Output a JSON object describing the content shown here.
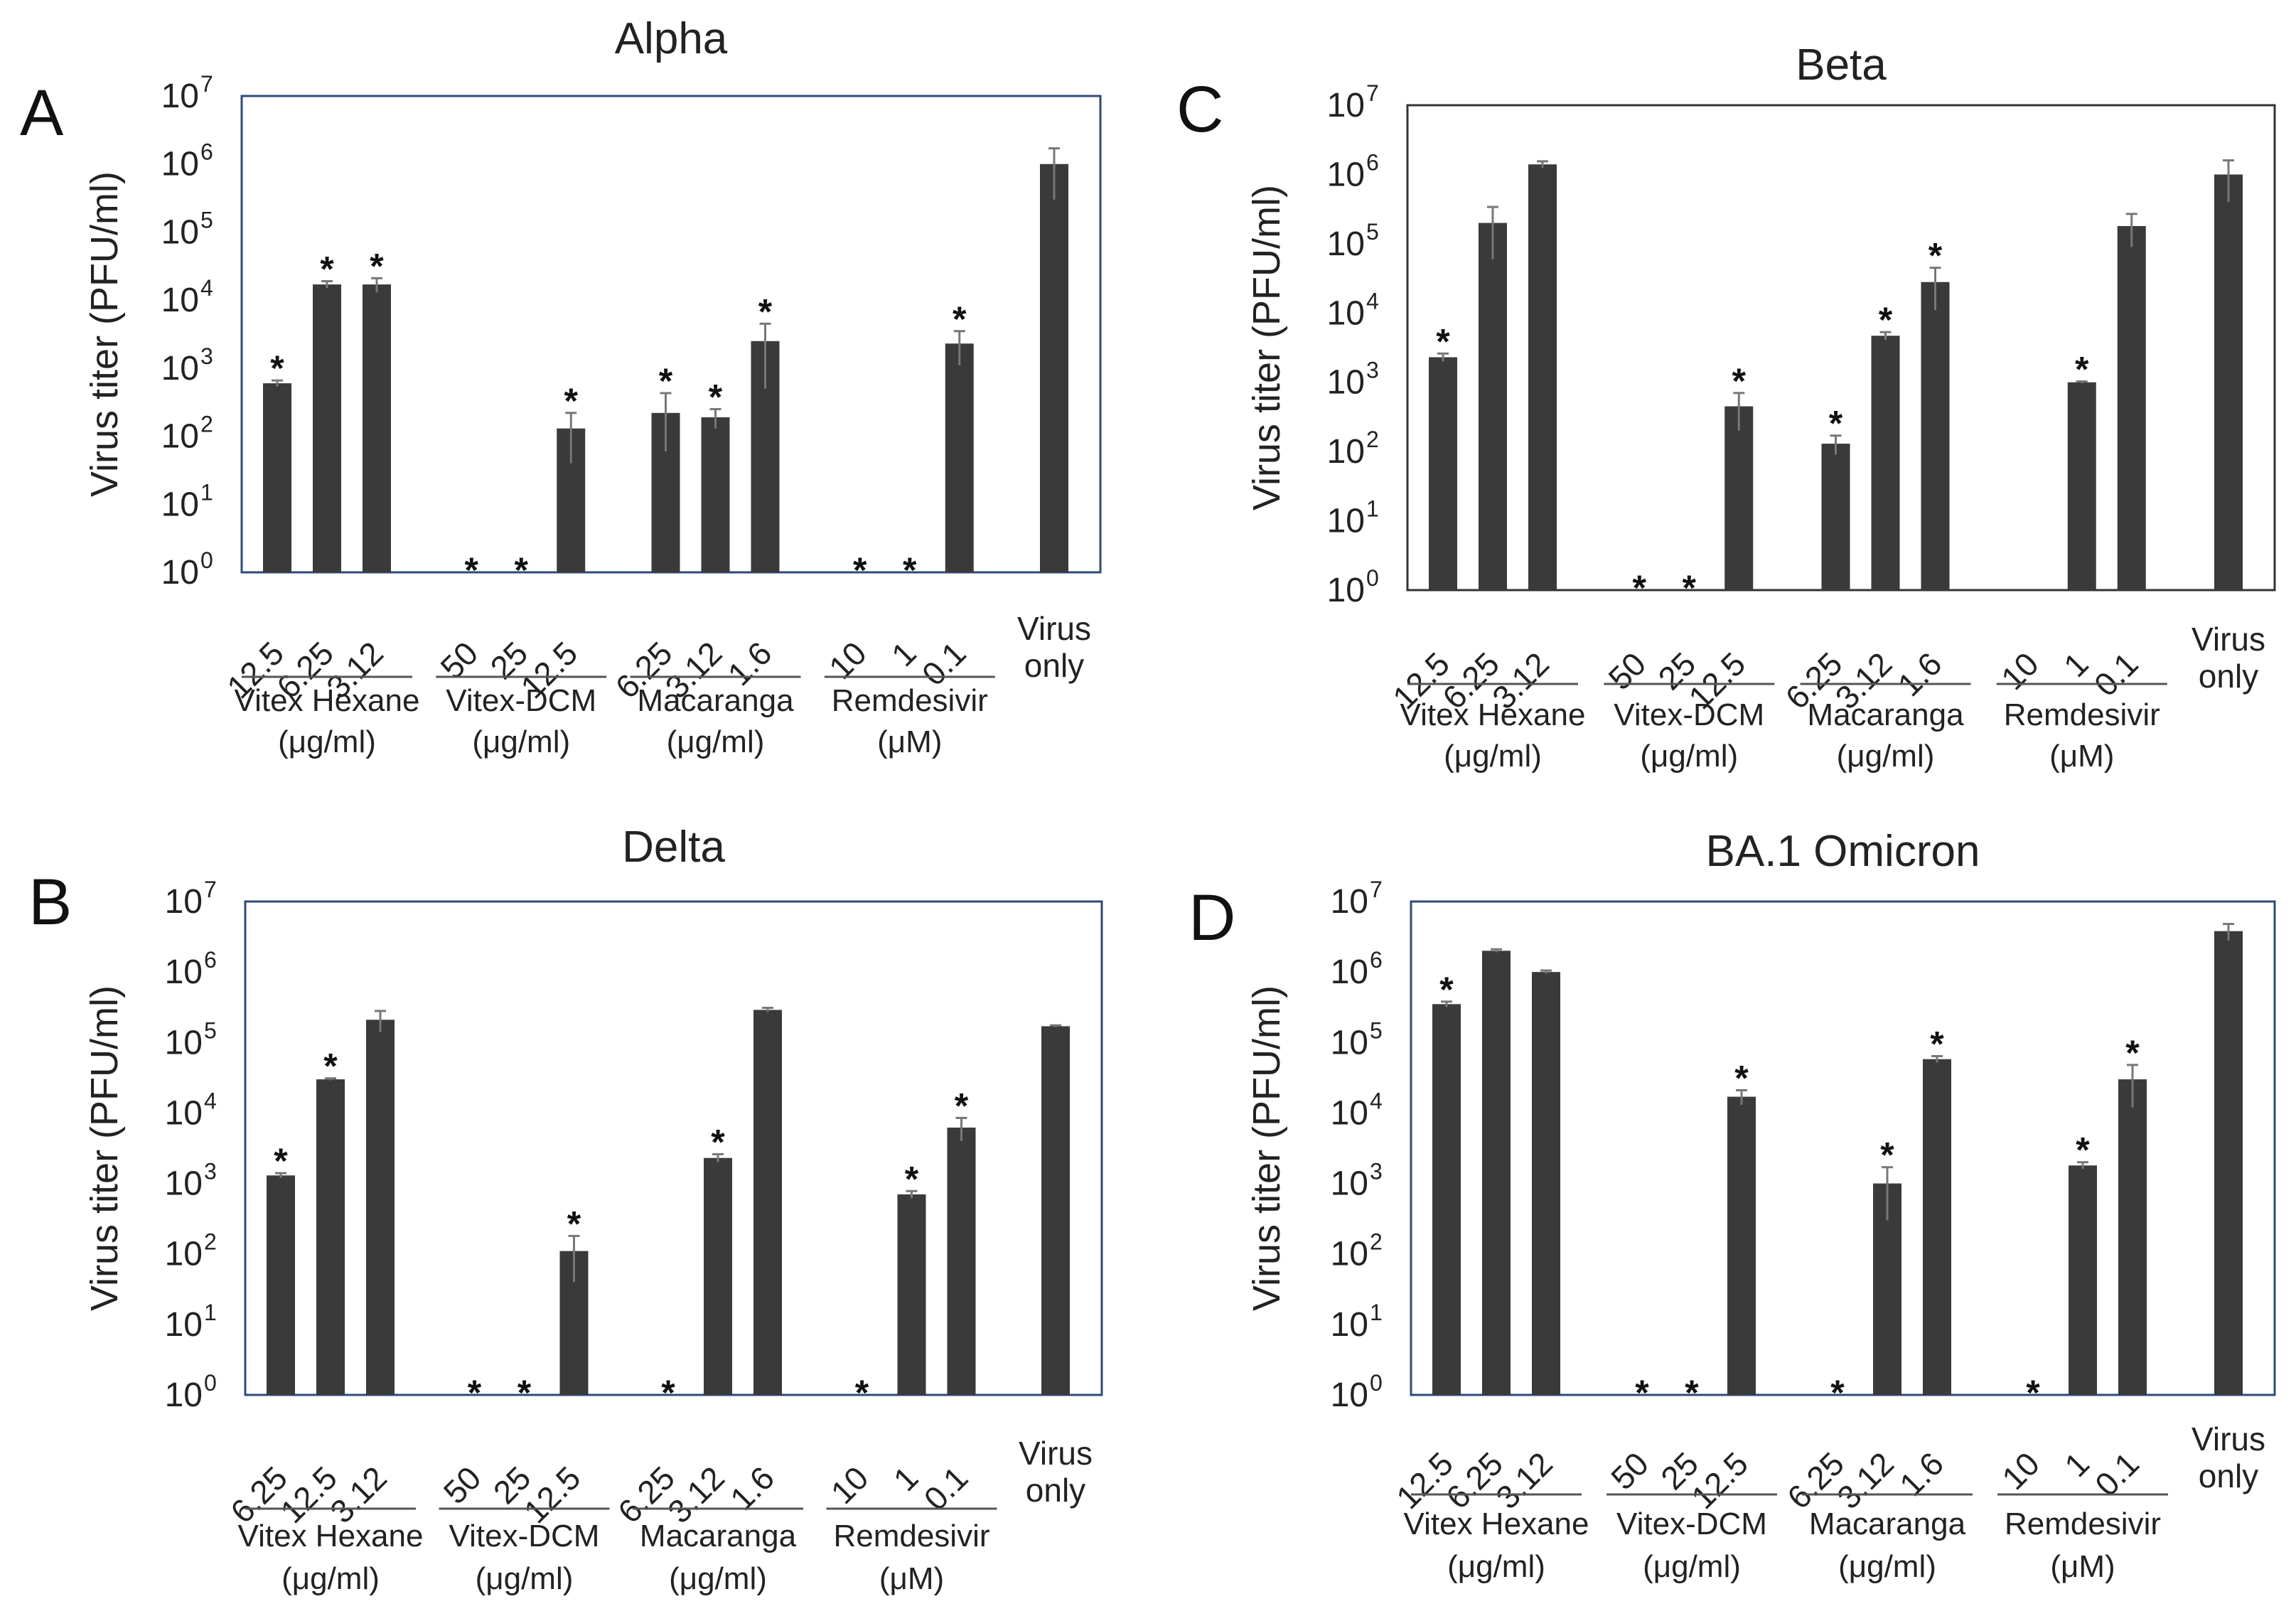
{
  "figure": {
    "description_source": "four-panel log-scale bar chart figure",
    "y_axis_label": "Virus titer (PFU/ml)",
    "y_ticks": [
      {
        "base": "10",
        "exp": "0"
      },
      {
        "base": "10",
        "exp": "1"
      },
      {
        "base": "10",
        "exp": "2"
      },
      {
        "base": "10",
        "exp": "3"
      },
      {
        "base": "10",
        "exp": "4"
      },
      {
        "base": "10",
        "exp": "5"
      },
      {
        "base": "10",
        "exp": "6"
      },
      {
        "base": "10",
        "exp": "7"
      }
    ],
    "significance_marker": "*",
    "frame_colors": {
      "A": "#2f4a7a",
      "B": "#2f4a7a",
      "C": "#333333",
      "D": "#2f4a7a"
    },
    "bar_color": "#3a3a3a",
    "error_color": "#777777"
  },
  "chart_data": [
    {
      "type": "bar",
      "panel": "A",
      "title": "Alpha",
      "ylabel": "Virus titer (PFU/ml)",
      "yscale": "log",
      "ylim": [
        1,
        10000000
      ],
      "groups": [
        {
          "label": [
            "Vitex Hexane",
            "(μg/ml)"
          ],
          "bars": [
            {
              "tick": "12.5",
              "value": 600,
              "err_hi": 660,
              "err_lo": 540,
              "sig": true
            },
            {
              "tick": "6.25",
              "value": 17000,
              "err_hi": 19000,
              "err_lo": 15000,
              "sig": true
            },
            {
              "tick": "3.12",
              "value": 17000,
              "err_hi": 21000,
              "err_lo": 13000,
              "sig": true
            }
          ]
        },
        {
          "label": [
            "Vitex-DCM",
            "(μg/ml)"
          ],
          "bars": [
            {
              "tick": "50",
              "value": null,
              "sig": true
            },
            {
              "tick": "25",
              "value": null,
              "sig": true
            },
            {
              "tick": "12.5",
              "value": 130,
              "err_hi": 220,
              "err_lo": 40,
              "sig": true
            }
          ]
        },
        {
          "label": [
            "Macaranga",
            "(μg/ml)"
          ],
          "bars": [
            {
              "tick": "6.25",
              "value": 220,
              "err_hi": 430,
              "err_lo": 60,
              "sig": true
            },
            {
              "tick": "3.12",
              "value": 190,
              "err_hi": 250,
              "err_lo": 130,
              "sig": true
            },
            {
              "tick": "1.6",
              "value": 2500,
              "err_hi": 4500,
              "err_lo": 500,
              "sig": true
            }
          ]
        },
        {
          "label": [
            "Remdesivir",
            "(μM)"
          ],
          "bars": [
            {
              "tick": "10",
              "value": null,
              "sig": true
            },
            {
              "tick": "1",
              "value": null,
              "sig": true
            },
            {
              "tick": "0.1",
              "value": 2300,
              "err_hi": 3500,
              "err_lo": 1100,
              "sig": true
            }
          ]
        },
        {
          "label": [
            "",
            ""
          ],
          "bars": [
            {
              "tick": "Virus only",
              "value": 1000000,
              "err_hi": 1700000,
              "err_lo": 300000,
              "sig": false
            }
          ]
        }
      ]
    },
    {
      "type": "bar",
      "panel": "B",
      "title": "Delta",
      "ylabel": "Virus titer (PFU/ml)",
      "yscale": "log",
      "ylim": [
        1,
        10000000
      ],
      "groups": [
        {
          "label": [
            "Vitex Hexane",
            "(μg/ml)"
          ],
          "bars": [
            {
              "tick": "6.25",
              "value": 1300,
              "err_hi": 1400,
              "err_lo": 1200,
              "sig": true
            },
            {
              "tick": "12.5",
              "value": 30000,
              "err_hi": 31000,
              "err_lo": 29000,
              "sig": true
            },
            {
              "tick": "3.12",
              "value": 210000,
              "err_hi": 280000,
              "err_lo": 140000,
              "sig": false
            }
          ]
        },
        {
          "label": [
            "Vitex-DCM",
            "(μg/ml)"
          ],
          "bars": [
            {
              "tick": "50",
              "value": null,
              "sig": true
            },
            {
              "tick": "25",
              "value": null,
              "sig": true
            },
            {
              "tick": "12.5",
              "value": 110,
              "err_hi": 180,
              "err_lo": 40,
              "sig": true
            }
          ]
        },
        {
          "label": [
            "Macaranga",
            "(μg/ml)"
          ],
          "bars": [
            {
              "tick": "6.25",
              "value": null,
              "sig": true
            },
            {
              "tick": "3.12",
              "value": 2300,
              "err_hi": 2600,
              "err_lo": 2000,
              "sig": true
            },
            {
              "tick": "1.6",
              "value": 290000,
              "err_hi": 310000,
              "err_lo": 270000,
              "sig": false
            }
          ]
        },
        {
          "label": [
            "Remdesivir",
            "(μM)"
          ],
          "bars": [
            {
              "tick": "10",
              "value": null,
              "sig": true
            },
            {
              "tick": "1",
              "value": 700,
              "err_hi": 780,
              "err_lo": 620,
              "sig": true
            },
            {
              "tick": "0.1",
              "value": 6200,
              "err_hi": 8500,
              "err_lo": 4000,
              "sig": true
            }
          ]
        },
        {
          "label": [
            "",
            ""
          ],
          "bars": [
            {
              "tick": "Virus only",
              "value": 170000,
              "err_hi": 175000,
              "err_lo": 165000,
              "sig": false
            }
          ]
        }
      ]
    },
    {
      "type": "bar",
      "panel": "C",
      "title": "Beta",
      "ylabel": "Virus titer (PFU/ml)",
      "yscale": "log",
      "ylim": [
        1,
        10000000
      ],
      "groups": [
        {
          "label": [
            "Vitex Hexane",
            "(μg/ml)"
          ],
          "bars": [
            {
              "tick": "12.5",
              "value": 2300,
              "err_hi": 2600,
              "err_lo": 2000,
              "sig": true
            },
            {
              "tick": "6.25",
              "value": 200000,
              "err_hi": 340000,
              "err_lo": 60000,
              "sig": false
            },
            {
              "tick": "3.12",
              "value": 1400000,
              "err_hi": 1550000,
              "err_lo": 1250000,
              "sig": false
            }
          ]
        },
        {
          "label": [
            "Vitex-DCM",
            "(μg/ml)"
          ],
          "bars": [
            {
              "tick": "50",
              "value": null,
              "sig": true
            },
            {
              "tick": "25",
              "value": null,
              "sig": true
            },
            {
              "tick": "12.5",
              "value": 450,
              "err_hi": 700,
              "err_lo": 200,
              "sig": true
            }
          ]
        },
        {
          "label": [
            "Macaranga",
            "(μg/ml)"
          ],
          "bars": [
            {
              "tick": "6.25",
              "value": 130,
              "err_hi": 170,
              "err_lo": 90,
              "sig": true
            },
            {
              "tick": "3.12",
              "value": 4700,
              "err_hi": 5300,
              "err_lo": 4100,
              "sig": true
            },
            {
              "tick": "1.6",
              "value": 28000,
              "err_hi": 45000,
              "err_lo": 11000,
              "sig": true
            }
          ]
        },
        {
          "label": [
            "Remdesivir",
            "(μM)"
          ],
          "bars": [
            {
              "tick": "10",
              "value": null,
              "sig": false
            },
            {
              "tick": "1",
              "value": 1000,
              "err_hi": 1030,
              "err_lo": 970,
              "sig": true
            },
            {
              "tick": "0.1",
              "value": 180000,
              "err_hi": 270000,
              "err_lo": 90000,
              "sig": false
            }
          ]
        },
        {
          "label": [
            "",
            ""
          ],
          "bars": [
            {
              "tick": "Virus only",
              "value": 1000000,
              "err_hi": 1600000,
              "err_lo": 400000,
              "sig": false
            }
          ]
        }
      ]
    },
    {
      "type": "bar",
      "panel": "D",
      "title": "BA.1 Omicron",
      "ylabel": "Virus titer (PFU/ml)",
      "yscale": "log",
      "ylim": [
        1,
        10000000
      ],
      "groups": [
        {
          "label": [
            "Vitex Hexane",
            "(μg/ml)"
          ],
          "bars": [
            {
              "tick": "12.5",
              "value": 350000,
              "err_hi": 380000,
              "err_lo": 320000,
              "sig": true
            },
            {
              "tick": "6.25",
              "value": 2000000,
              "err_hi": 2100000,
              "err_lo": 1900000,
              "sig": false
            },
            {
              "tick": "3.12",
              "value": 1000000,
              "err_hi": 1050000,
              "err_lo": 950000,
              "sig": false
            }
          ]
        },
        {
          "label": [
            "Vitex-DCM",
            "(μg/ml)"
          ],
          "bars": [
            {
              "tick": "50",
              "value": null,
              "sig": true
            },
            {
              "tick": "25",
              "value": null,
              "sig": true
            },
            {
              "tick": "12.5",
              "value": 17000,
              "err_hi": 21000,
              "err_lo": 13000,
              "sig": true
            }
          ]
        },
        {
          "label": [
            "Macaranga",
            "(μg/ml)"
          ],
          "bars": [
            {
              "tick": "6.25",
              "value": null,
              "sig": true
            },
            {
              "tick": "3.12",
              "value": 1000,
              "err_hi": 1700,
              "err_lo": 300,
              "sig": true
            },
            {
              "tick": "1.6",
              "value": 58000,
              "err_hi": 64000,
              "err_lo": 52000,
              "sig": true
            }
          ]
        },
        {
          "label": [
            "Remdesivir",
            "(μM)"
          ],
          "bars": [
            {
              "tick": "10",
              "value": null,
              "sig": true
            },
            {
              "tick": "1",
              "value": 1800,
              "err_hi": 2000,
              "err_lo": 1600,
              "sig": true
            },
            {
              "tick": "0.1",
              "value": 30000,
              "err_hi": 48000,
              "err_lo": 12000,
              "sig": true
            }
          ]
        },
        {
          "label": [
            "",
            ""
          ],
          "bars": [
            {
              "tick": "Virus only",
              "value": 3800000,
              "err_hi": 4800000,
              "err_lo": 2800000,
              "sig": false
            }
          ]
        }
      ]
    }
  ]
}
